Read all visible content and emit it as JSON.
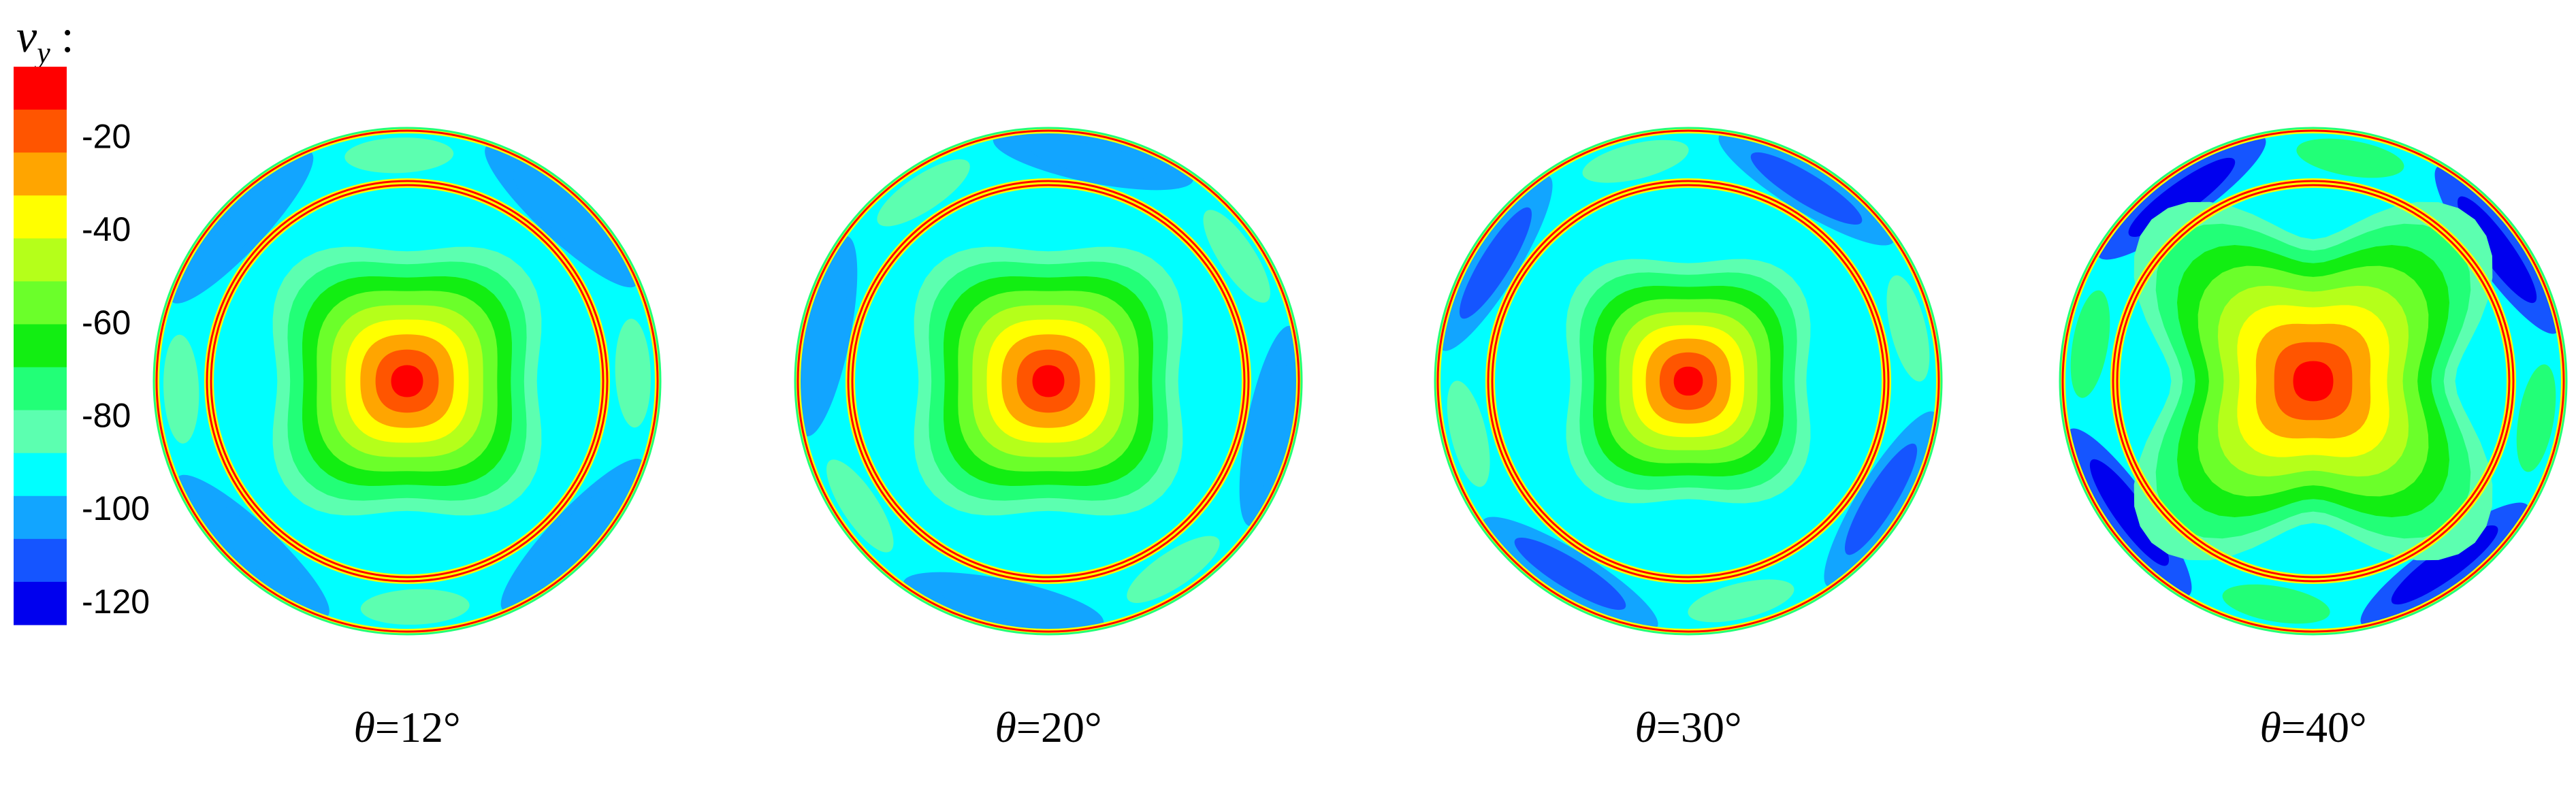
{
  "chart_data": {
    "type": "heatmap",
    "colorbar": {
      "variable_symbol": "v",
      "variable_subscript": "y",
      "separator": ":",
      "levels": [
        -125,
        -115,
        -105,
        -95,
        -85,
        -75,
        -65,
        -55,
        -45,
        -35,
        -25,
        -15,
        -5
      ],
      "tick_labels": [
        "-20",
        "-40",
        "-60",
        "-80",
        "-100",
        "-120"
      ],
      "tick_values": [
        -20,
        -40,
        -60,
        -80,
        -100,
        -120
      ],
      "colors_top_to_bottom": [
        "#ff0000",
        "#ff5500",
        "#ffa500",
        "#ffff00",
        "#b5ff1a",
        "#6bff2a",
        "#12ee12",
        "#22ff77",
        "#5cffb0",
        "#00ffff",
        "#12a5ff",
        "#1555ff",
        "#0000ee"
      ]
    },
    "panels": [
      {
        "symbol": "θ",
        "value": "=12°",
        "center_value": -5,
        "outer_ring_pattern": "light",
        "inner_core_spread": 0.55
      },
      {
        "symbol": "θ",
        "value": "=20°",
        "center_value": -5,
        "outer_ring_pattern": "light",
        "inner_core_spread": 0.55
      },
      {
        "symbol": "θ",
        "value": "=30°",
        "center_value": -5,
        "outer_ring_pattern": "medium",
        "inner_core_spread": 0.5
      },
      {
        "symbol": "θ",
        "value": "=40°",
        "center_value": -10,
        "outer_ring_pattern": "strong",
        "inner_core_spread": 0.7
      }
    ]
  }
}
